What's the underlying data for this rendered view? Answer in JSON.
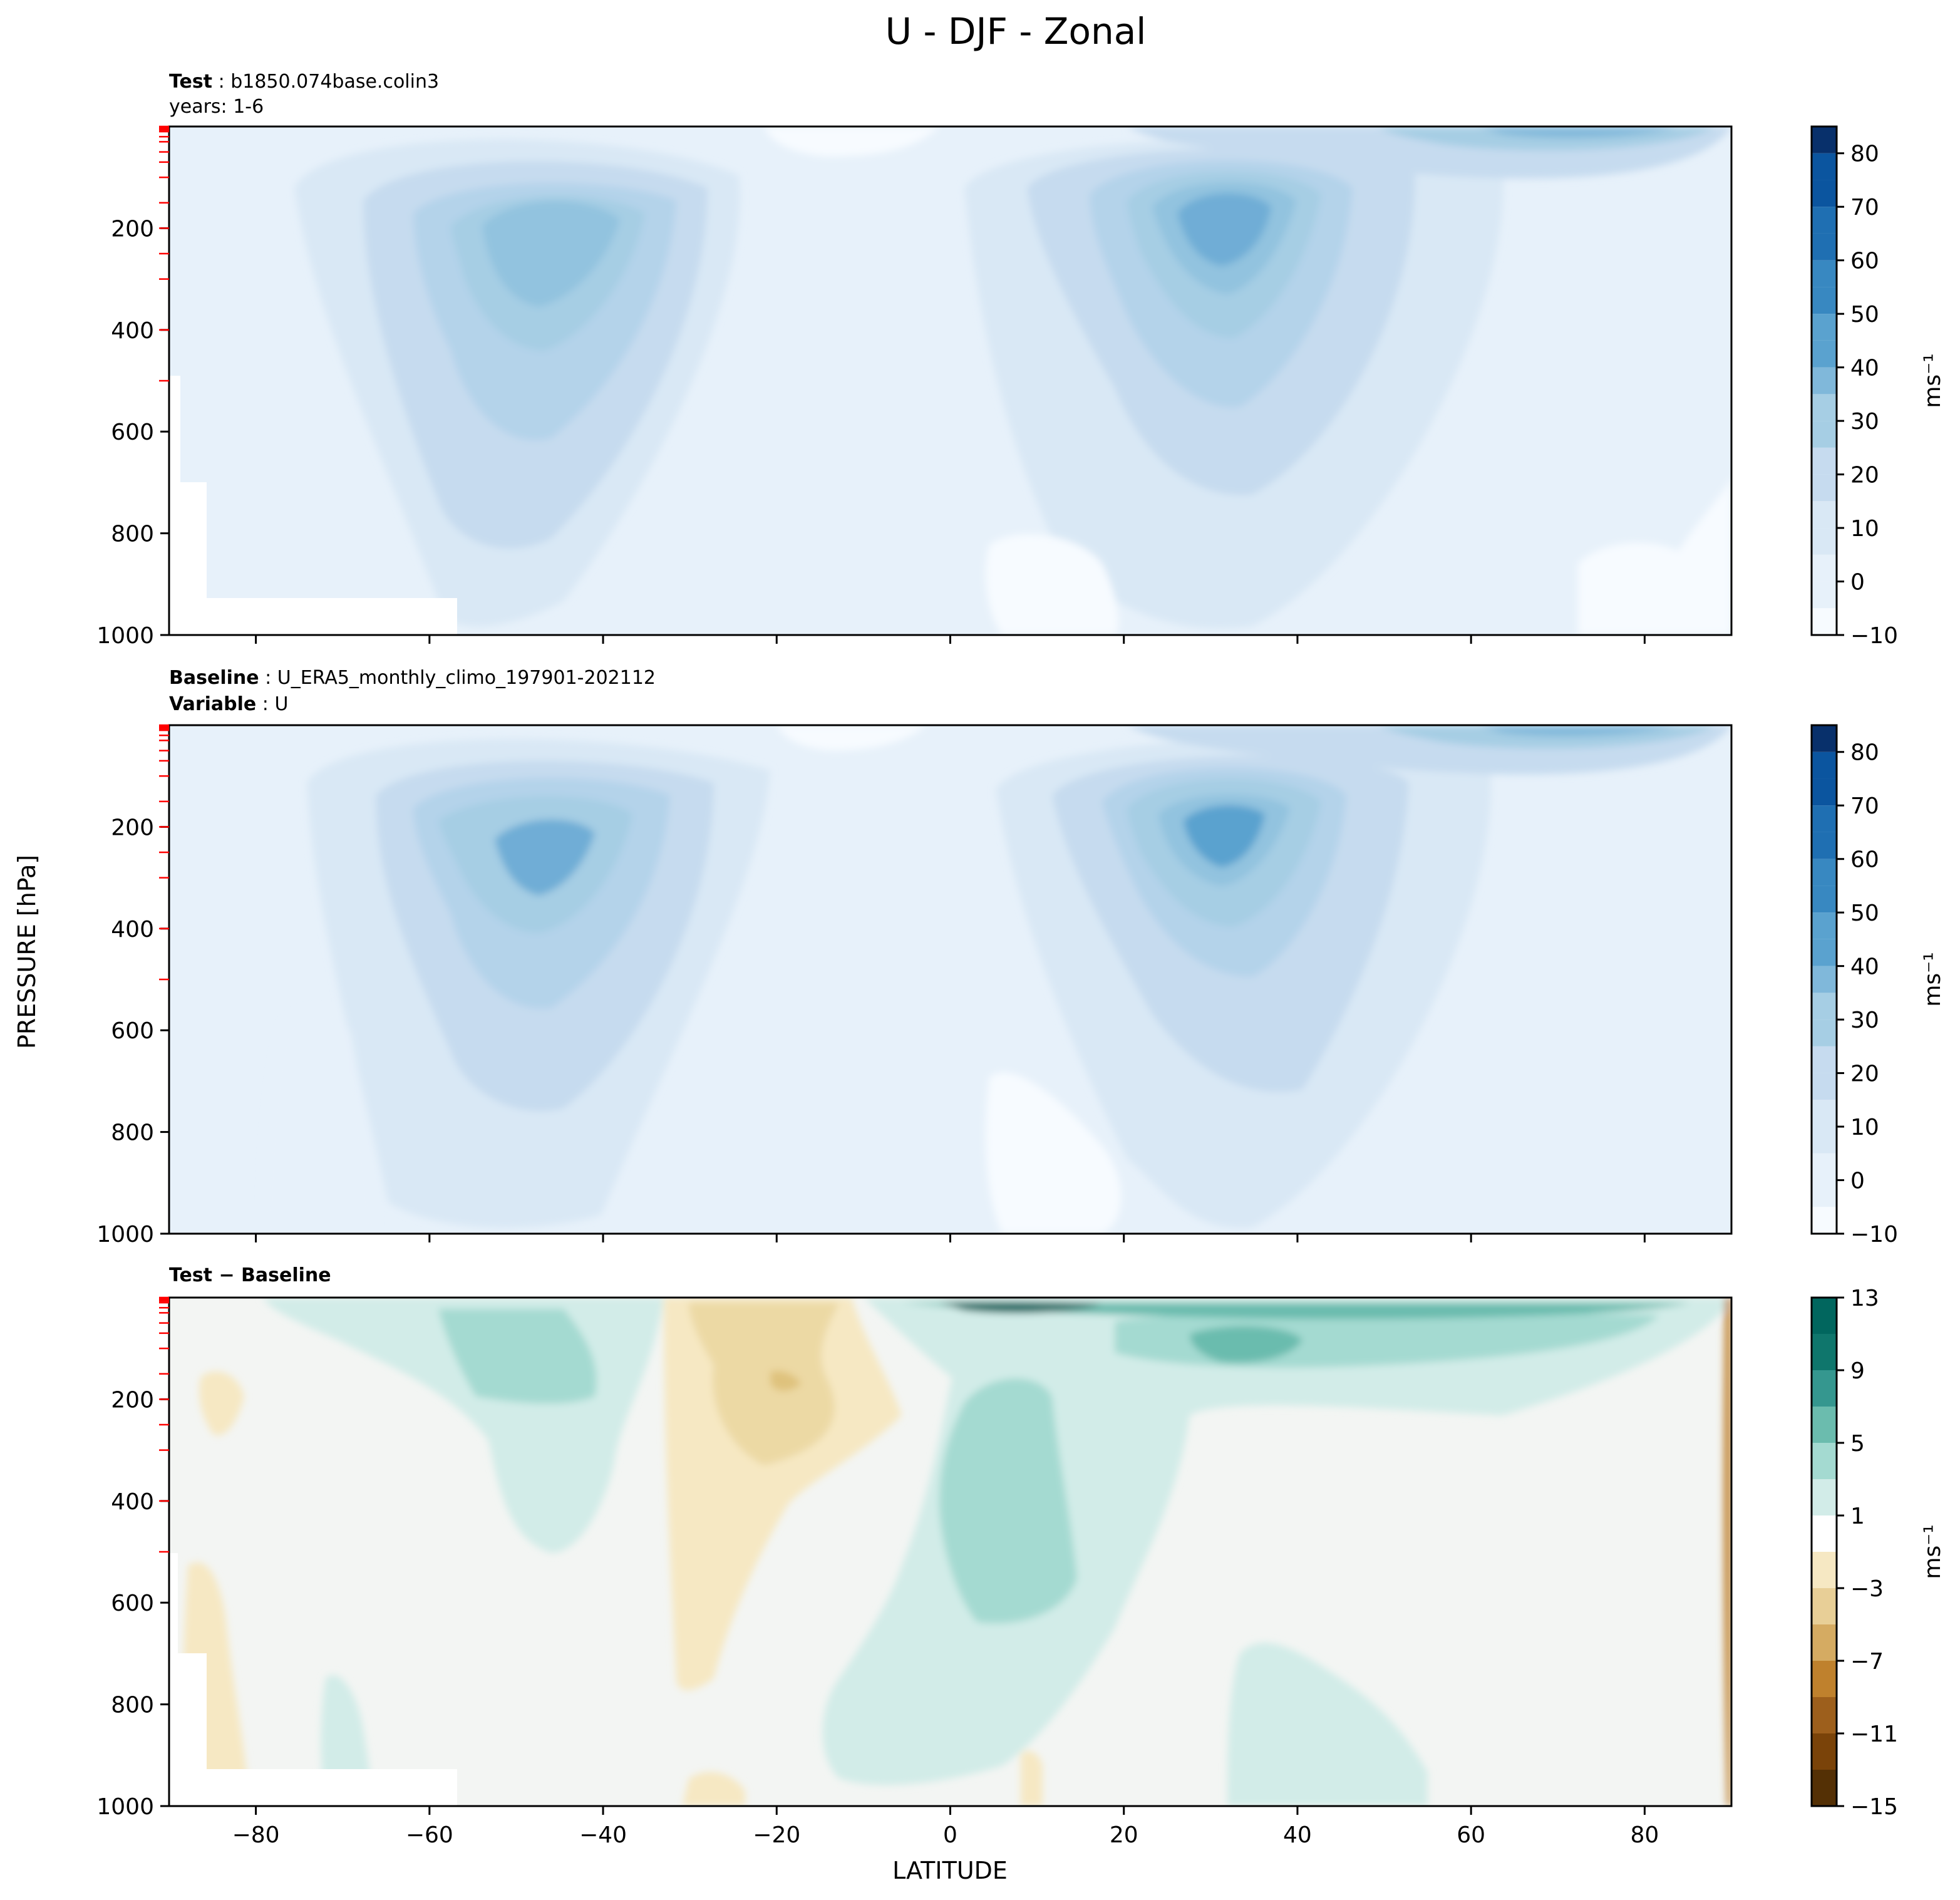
{
  "figure": {
    "title": "U - DJF - Zonal",
    "ylabel": "PRESSURE [hPa]",
    "xlabel": "LATITUDE"
  },
  "chart_data": [
    {
      "type": "contour",
      "panel": "test",
      "header": {
        "bold": "Test",
        "text": "b1850.074base.colin3",
        "line2": "years: 1-6"
      },
      "xlim": [
        -90,
        90
      ],
      "ylim": [
        1000,
        0
      ],
      "xticks": [
        -80,
        -60,
        -40,
        -20,
        0,
        20,
        40,
        60,
        80
      ],
      "show_xtick_labels": false,
      "yticks": [
        200,
        400,
        600,
        800,
        1000
      ],
      "colormap": "Blues",
      "colorbar": {
        "ticks": [
          -10,
          0,
          10,
          20,
          30,
          40,
          50,
          60,
          70,
          80
        ],
        "range": [
          -10,
          85
        ],
        "units": "ms⁻¹"
      },
      "jets": [
        {
          "lat": -47,
          "p": 215,
          "max": 33
        },
        {
          "lat": 31,
          "p": 190,
          "max": 42
        },
        {
          "lat": 65,
          "p": 20,
          "max": 40
        }
      ]
    },
    {
      "type": "contour",
      "panel": "baseline",
      "header": {
        "bold": "Baseline",
        "text": "U_ERA5_monthly_climo_197901-202112",
        "bold2": "Variable",
        "text2": "U"
      },
      "xlim": [
        -90,
        90
      ],
      "ylim": [
        1000,
        0
      ],
      "xticks": [
        -80,
        -60,
        -40,
        -20,
        0,
        20,
        40,
        60,
        80
      ],
      "show_xtick_labels": false,
      "yticks": [
        200,
        400,
        600,
        800,
        1000
      ],
      "colormap": "Blues",
      "colorbar": {
        "ticks": [
          -10,
          0,
          10,
          20,
          30,
          40,
          50,
          60,
          70,
          80
        ],
        "range": [
          -10,
          85
        ],
        "units": "ms⁻¹"
      },
      "jets": [
        {
          "lat": -48,
          "p": 240,
          "max": 33
        },
        {
          "lat": 31,
          "p": 200,
          "max": 40
        },
        {
          "lat": 65,
          "p": 20,
          "max": 38
        }
      ]
    },
    {
      "type": "contour",
      "panel": "difference",
      "header": {
        "bold": "Test − Baseline"
      },
      "xlim": [
        -90,
        90
      ],
      "ylim": [
        1000,
        0
      ],
      "xticks": [
        -80,
        -60,
        -40,
        -20,
        0,
        20,
        40,
        60,
        80
      ],
      "show_xtick_labels": true,
      "yticks": [
        200,
        400,
        600,
        800,
        1000
      ],
      "colormap": "BrBG",
      "colorbar": {
        "ticks": [
          -15,
          -11,
          -7,
          -3,
          1,
          5,
          9,
          13
        ],
        "range": [
          -15,
          13
        ],
        "units": "ms⁻¹"
      },
      "features": [
        {
          "lat": 8,
          "p": 25,
          "value": 12
        },
        {
          "lat": 33,
          "p": 80,
          "value": 6
        },
        {
          "lat": -45,
          "p": 150,
          "value": 4
        },
        {
          "lat": -20,
          "p": 150,
          "value": -3.5
        },
        {
          "lat": 5,
          "p": 400,
          "value": 3
        }
      ]
    }
  ],
  "colors": {
    "blues": [
      "#f7fbff",
      "#e7f1fa",
      "#d9e8f5",
      "#c6dbef",
      "#a6cee4",
      "#80b8da",
      "#5aa2cf",
      "#3888c1",
      "#1f6fb2",
      "#0b559f",
      "#08306b"
    ],
    "brbg": [
      "#543005",
      "#8c510a",
      "#bf812d",
      "#dfc27d",
      "#f6e8c3",
      "#f5f5f5",
      "#c7eae5",
      "#80cdc1",
      "#35978f",
      "#01665e",
      "#003c30"
    ],
    "neutral": "#f3f5f3",
    "missing": "#ffffff",
    "level_tick": "#ff0000"
  }
}
